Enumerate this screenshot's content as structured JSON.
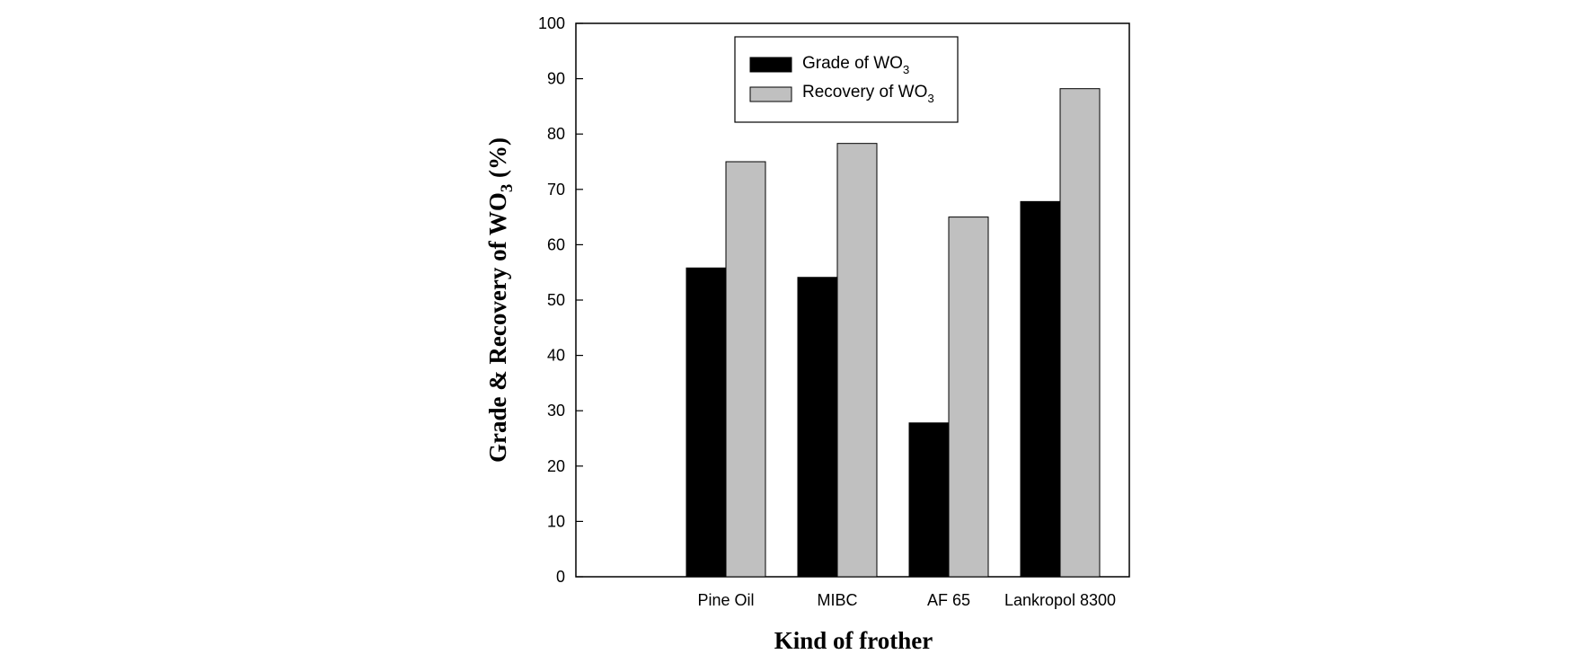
{
  "chart_data": {
    "type": "bar",
    "categories": [
      "Pine Oil",
      "MIBC",
      "AF 65",
      "Lankropol 8300"
    ],
    "series": [
      {
        "name": "Grade of WO3",
        "color": "#000000",
        "values": [
          55.8,
          54.1,
          27.8,
          67.8
        ]
      },
      {
        "name": "Recovery of WO3",
        "color": "#c0c0c0",
        "values": [
          75.0,
          78.3,
          65.0,
          88.2
        ]
      }
    ],
    "xlabel": "Kind of frother",
    "ylabel": "Grade & Recovery of WO3 (%)",
    "ylim": [
      0,
      100
    ],
    "yticks": [
      0,
      10,
      20,
      30,
      40,
      50,
      60,
      70,
      80,
      90,
      100
    ],
    "grid": false,
    "legend_position": "top"
  }
}
